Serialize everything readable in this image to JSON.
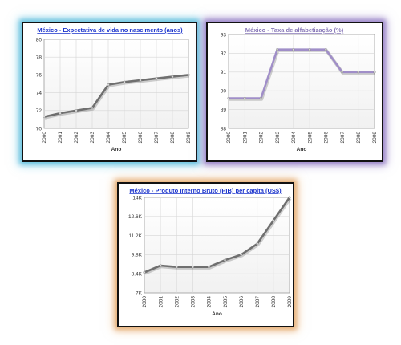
{
  "chart_data": [
    {
      "type": "line",
      "title": "México - Expectativa de vida no nascimento (anos)",
      "xlabel": "Ano",
      "ylabel": "",
      "x": [
        "2000",
        "2001",
        "2002",
        "2003",
        "2004",
        "2005",
        "2006",
        "2007",
        "2008",
        "2009"
      ],
      "y_ticks": [
        "70",
        "72",
        "74",
        "76",
        "78",
        "80"
      ],
      "ylim": [
        70,
        80
      ],
      "series": [
        {
          "values": [
            71.3,
            71.7,
            72.0,
            72.3,
            74.9,
            75.2,
            75.4,
            75.6,
            75.8,
            76.0
          ]
        }
      ],
      "grid": true,
      "colors": {
        "line": "#6f6f6f",
        "title": "#1a33cc",
        "glow": "#69c3e0"
      }
    },
    {
      "type": "line",
      "title": "México - Taxa de alfabetização (%)",
      "xlabel": "Ano",
      "ylabel": "",
      "x": [
        "2000",
        "2001",
        "2002",
        "2003",
        "2004",
        "2005",
        "2006",
        "2007",
        "2008",
        "2009"
      ],
      "y_ticks": [
        "88",
        "89",
        "90",
        "91",
        "92",
        "93"
      ],
      "ylim": [
        88,
        93
      ],
      "series": [
        {
          "values": [
            89.6,
            89.6,
            89.6,
            92.2,
            92.2,
            92.2,
            92.2,
            91.0,
            91.0,
            91.0
          ]
        }
      ],
      "grid": true,
      "colors": {
        "line": "#a08ec8",
        "title": "#8878b8",
        "glow": "#9b86c9"
      }
    },
    {
      "type": "line",
      "title": "México - Produto Interno Bruto (PIB) per capita (US$)",
      "xlabel": "Ano",
      "ylabel": "",
      "x": [
        "2000",
        "2001",
        "2002",
        "2003",
        "2004",
        "2005",
        "2006",
        "2007",
        "2008",
        "2009"
      ],
      "y_ticks": [
        "7K",
        "8.4K",
        "9.8K",
        "11.2K",
        "12.6K",
        "14K"
      ],
      "ylim": [
        7000,
        14000
      ],
      "series": [
        {
          "values": [
            8500,
            9000,
            8900,
            8900,
            8900,
            9400,
            9800,
            10600,
            12300,
            14000
          ]
        }
      ],
      "grid": true,
      "colors": {
        "line": "#6f6f6f",
        "title": "#1a33cc",
        "glow": "#e7b179"
      }
    }
  ]
}
